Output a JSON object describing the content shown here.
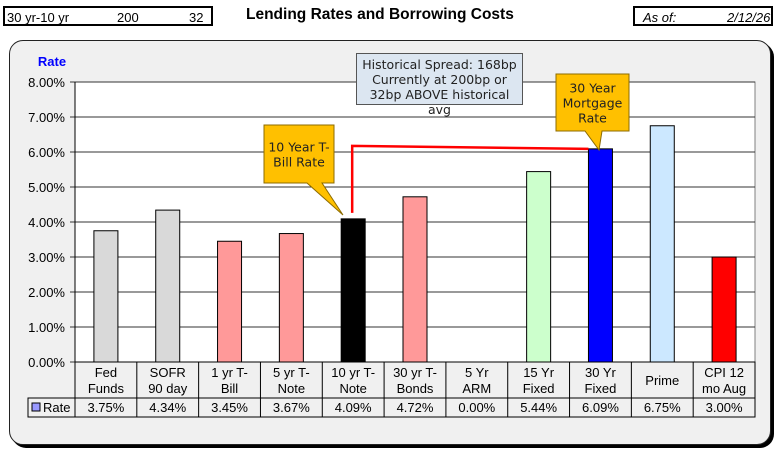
{
  "header": {
    "spread_label": "30 yr-10 yr",
    "spread_current_bp": "200",
    "spread_above_bp": "32",
    "title": "Lending Rates and Borrowing Costs",
    "as_of_label": "As of:",
    "as_of_date": "2/12/26"
  },
  "annotations": {
    "historical": [
      "Historical Spread: 168bp",
      "Currently at 200bp  or",
      "32bp ABOVE historical avg"
    ],
    "ten_year": [
      "10 Year T-",
      "Bill Rate"
    ],
    "thirty_year": [
      "30 Year",
      "Mortgage",
      "Rate"
    ]
  },
  "chart_data": {
    "type": "bar",
    "title": "Lending Rates and Borrowing Costs",
    "ylabel": "Rate",
    "xlabel": "",
    "ylim": [
      0,
      8
    ],
    "yticks": [
      "0.00%",
      "1.00%",
      "2.00%",
      "3.00%",
      "4.00%",
      "5.00%",
      "6.00%",
      "7.00%",
      "8.00%"
    ],
    "grid": true,
    "legend": "data-table-left",
    "legend_label": "Rate",
    "categories": [
      [
        "Fed",
        "Funds"
      ],
      [
        "SOFR",
        "90 day"
      ],
      [
        "1 yr  T-",
        "Bill"
      ],
      [
        "5 yr T-",
        "Note"
      ],
      [
        "10 yr T-",
        "Note"
      ],
      [
        "30 yr T-",
        "Bonds"
      ],
      [
        "5 Yr",
        "ARM"
      ],
      [
        "15 Yr",
        "Fixed"
      ],
      [
        "30 Yr",
        "Fixed"
      ],
      [
        "Prime"
      ],
      [
        "CPI 12",
        "mo Aug"
      ]
    ],
    "values": [
      3.75,
      4.34,
      3.45,
      3.67,
      4.09,
      4.72,
      0.0,
      5.44,
      6.09,
      6.75,
      3.0
    ],
    "value_labels": [
      "3.75%",
      "4.34%",
      "3.45%",
      "3.67%",
      "4.09%",
      "4.72%",
      "0.00%",
      "5.44%",
      "6.09%",
      "6.75%",
      "3.00%"
    ],
    "colors": [
      "#d9d9d9",
      "#d9d9d9",
      "#ff9999",
      "#ff9999",
      "#000000",
      "#ff9999",
      "#ff9999",
      "#ccffcc",
      "#0000ff",
      "#cce8ff",
      "#ff0000"
    ],
    "spread_connector": {
      "from_category": 4,
      "to_category": 8,
      "color": "#ff0000"
    }
  },
  "colors": {
    "legend_swatch": "#9999ff",
    "ylabel": "#0000ff",
    "callout_fill": "#ffc000",
    "callout_border": "#8c6b00",
    "note_fill": "#dce6f1"
  }
}
